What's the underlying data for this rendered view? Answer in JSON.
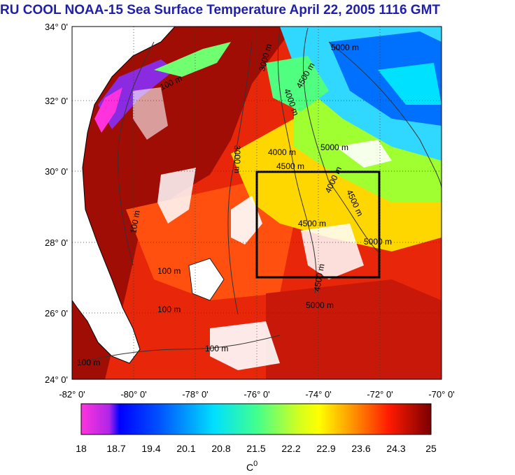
{
  "title": "RU COOL  NOAA-15 Sea Surface Temperature April 22, 2005 1116 GMT",
  "map": {
    "lat_ticks": [
      "34° 0'",
      "32° 0'",
      "30° 0'",
      "28° 0'",
      "26° 0'",
      "24° 0'"
    ],
    "lon_ticks": [
      "-82° 0'",
      "-80° 0'",
      "-78° 0'",
      "-76° 0'",
      "-74° 0'",
      "-72° 0'",
      "-70° 0'"
    ],
    "box_label": "4500 m",
    "contour_labels": [
      "5000 m",
      "4500 m",
      "4000 m",
      "3000 m",
      "100 m",
      "4000 m",
      "4500 m",
      "5000 m",
      "4000 m",
      "4500 m",
      "3000 m",
      "5000 m",
      "4500 m",
      "5000 m",
      "100 m",
      "100 m",
      "100 m",
      "100 m",
      "100 m"
    ]
  },
  "colorbar": {
    "ticks": [
      "18",
      "18.7",
      "19.4",
      "20.1",
      "20.8",
      "21.5",
      "22.2",
      "22.9",
      "23.6",
      "24.3",
      "25"
    ],
    "unit": "C",
    "unit_sup": "0",
    "range": [
      18,
      25
    ],
    "colors": [
      "#ff33dd",
      "#9b1fe0",
      "#0000ff",
      "#0066ff",
      "#00ccff",
      "#33ffcc",
      "#99ff33",
      "#ffff00",
      "#ff9900",
      "#ff2200",
      "#880000"
    ]
  }
}
